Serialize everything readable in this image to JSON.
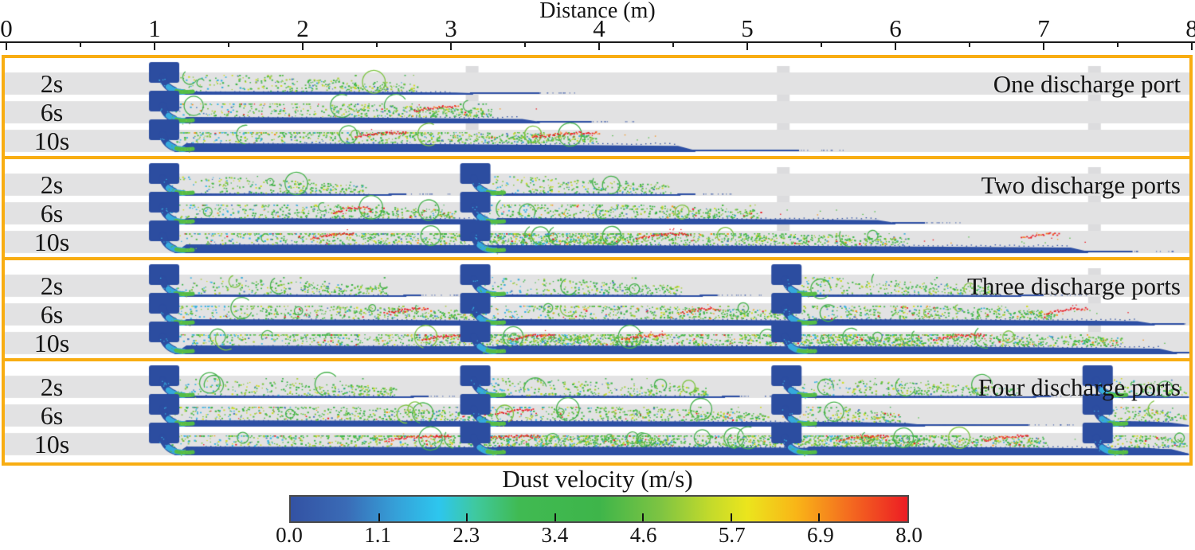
{
  "chart_data": {
    "type": "scatter",
    "figure": "Dust dispersion simulation snapshots for different numbers of discharge ports",
    "xlabel": "Distance (m)",
    "x_range": [
      0,
      8
    ],
    "x_ticks": [
      "0",
      "1",
      "2",
      "3",
      "4",
      "5",
      "6",
      "7",
      "8"
    ],
    "x_minor_tick_step": 0.5,
    "colorbar": {
      "title": "Dust velocity (m/s)",
      "range": [
        0,
        8
      ],
      "tick_labels": [
        "0.0",
        "1.1",
        "2.3",
        "3.4",
        "4.6",
        "5.7",
        "6.9",
        "8.0"
      ],
      "stops": [
        {
          "p": 0.0,
          "c": "#3352A3"
        },
        {
          "p": 0.09,
          "c": "#3A6BB6"
        },
        {
          "p": 0.17,
          "c": "#35A0D8"
        },
        {
          "p": 0.24,
          "c": "#2DC6EE"
        },
        {
          "p": 0.3,
          "c": "#3FC99E"
        },
        {
          "p": 0.37,
          "c": "#40BA52"
        },
        {
          "p": 0.5,
          "c": "#3EB54A"
        },
        {
          "p": 0.6,
          "c": "#7EC442"
        },
        {
          "p": 0.68,
          "c": "#C3DA2B"
        },
        {
          "p": 0.74,
          "c": "#EBE51D"
        },
        {
          "p": 0.82,
          "c": "#F9B517"
        },
        {
          "p": 0.9,
          "c": "#F4701F"
        },
        {
          "p": 1.0,
          "c": "#EC1C24"
        }
      ]
    },
    "all_ports_m": [
      1.0,
      3.1,
      5.2,
      7.3
    ],
    "times": [
      "2s",
      "6s",
      "10s"
    ],
    "panels": [
      {
        "label": "One discharge port",
        "ports_m": [
          1.0
        ],
        "rows": [
          {
            "time": "2s",
            "plumes": [
              {
                "start_m": 1.0,
                "cloud_m": 2.8,
                "sed_m": 3.15,
                "tail_m": 3.6,
                "th": 4
              }
            ],
            "streaks_m": []
          },
          {
            "time": "6s",
            "plumes": [
              {
                "start_m": 1.0,
                "cloud_m": 3.3,
                "sed_m": 3.6,
                "tail_m": 3.95,
                "th": 8
              }
            ],
            "streaks_m": [
              [
                2.75,
                3.05
              ]
            ]
          },
          {
            "time": "10s",
            "plumes": [
              {
                "start_m": 1.0,
                "cloud_m": 4.0,
                "sed_m": 4.65,
                "tail_m": 5.35,
                "th": 11
              }
            ],
            "streaks_m": [
              [
                2.35,
                2.7
              ],
              [
                3.55,
                4.0
              ]
            ]
          }
        ]
      },
      {
        "label": "Two discharge ports",
        "ports_m": [
          1.0,
          3.1
        ],
        "rows": [
          {
            "time": "2s",
            "plumes": [
              {
                "start_m": 1.0,
                "cloud_m": 2.45,
                "sed_m": 2.6,
                "tail_m": 2.7,
                "th": 3
              },
              {
                "start_m": 3.1,
                "cloud_m": 4.5,
                "sed_m": 4.55,
                "tail_m": 4.65,
                "th": 3
              }
            ],
            "streaks_m": []
          },
          {
            "time": "6s",
            "plumes": [
              {
                "start_m": 1.0,
                "cloud_m": 3.05,
                "sed_m": 4.1,
                "tail_m": 4.35,
                "th": 8
              },
              {
                "start_m": 3.1,
                "cloud_m": 5.1,
                "sed_m": 6.0,
                "tail_m": 6.2,
                "th": 8
              }
            ],
            "streaks_m": [
              [
                2.2,
                2.45
              ]
            ]
          },
          {
            "time": "10s",
            "plumes": [
              {
                "start_m": 1.0,
                "cloud_m": 4.3,
                "sed_m": 5.3,
                "tail_m": 5.45,
                "th": 11
              },
              {
                "start_m": 3.1,
                "cloud_m": 6.1,
                "sed_m": 7.3,
                "tail_m": 7.6,
                "th": 10
              }
            ],
            "streaks_m": [
              [
                2.05,
                2.35
              ],
              [
                4.25,
                4.6
              ],
              [
                6.85,
                7.1
              ]
            ]
          }
        ]
      },
      {
        "label": "Three discharge ports",
        "ports_m": [
          1.0,
          3.1,
          5.2
        ],
        "rows": [
          {
            "time": "2s",
            "plumes": [
              {
                "start_m": 1.0,
                "cloud_m": 2.6,
                "sed_m": 2.7,
                "tail_m": 2.8,
                "th": 3
              },
              {
                "start_m": 3.1,
                "cloud_m": 4.6,
                "sed_m": 4.7,
                "tail_m": 4.8,
                "th": 3
              },
              {
                "start_m": 5.2,
                "cloud_m": 6.7,
                "sed_m": 6.85,
                "tail_m": 7.0,
                "th": 3
              }
            ],
            "streaks_m": []
          },
          {
            "time": "6s",
            "plumes": [
              {
                "start_m": 1.0,
                "cloud_m": 3.25,
                "sed_m": 3.85,
                "tail_m": 4.05,
                "th": 8
              },
              {
                "start_m": 3.1,
                "cloud_m": 5.3,
                "sed_m": 6.15,
                "tail_m": 6.35,
                "th": 8
              },
              {
                "start_m": 5.2,
                "cloud_m": 7.1,
                "sed_m": 7.75,
                "tail_m": 7.95,
                "th": 8
              }
            ],
            "streaks_m": [
              [
                2.55,
                2.85
              ],
              [
                4.55,
                4.8
              ],
              [
                7.0,
                7.3
              ]
            ]
          },
          {
            "time": "10s",
            "plumes": [
              {
                "start_m": 1.0,
                "cloud_m": 4.35,
                "sed_m": 5.15,
                "tail_m": 5.3,
                "th": 11
              },
              {
                "start_m": 3.1,
                "cloud_m": 6.2,
                "sed_m": 7.1,
                "tail_m": 7.2,
                "th": 11
              },
              {
                "start_m": 5.2,
                "cloud_m": 7.55,
                "sed_m": 7.9,
                "tail_m": 8.0,
                "th": 10
              }
            ],
            "streaks_m": [
              [
                2.8,
                3.15
              ],
              [
                3.4,
                3.7
              ],
              [
                4.15,
                4.45
              ],
              [
                6.25,
                6.6
              ]
            ]
          }
        ]
      },
      {
        "label": "Four discharge ports",
        "ports_m": [
          1.0,
          3.1,
          5.2,
          7.3
        ],
        "rows": [
          {
            "time": "2s",
            "plumes": [
              {
                "start_m": 1.0,
                "cloud_m": 2.65,
                "sed_m": 2.75,
                "tail_m": 2.85,
                "th": 3
              },
              {
                "start_m": 3.1,
                "cloud_m": 4.75,
                "sed_m": 4.85,
                "tail_m": 4.95,
                "th": 3
              },
              {
                "start_m": 5.2,
                "cloud_m": 6.85,
                "sed_m": 6.95,
                "tail_m": 7.05,
                "th": 3
              },
              {
                "start_m": 7.3,
                "cloud_m": 7.98,
                "sed_m": 7.98,
                "tail_m": 7.98,
                "th": 3
              }
            ],
            "streaks_m": []
          },
          {
            "time": "6s",
            "plumes": [
              {
                "start_m": 1.0,
                "cloud_m": 3.3,
                "sed_m": 4.35,
                "tail_m": 4.6,
                "th": 8
              },
              {
                "start_m": 3.1,
                "cloud_m": 5.15,
                "sed_m": 5.85,
                "tail_m": 6.9,
                "th": 7
              },
              {
                "start_m": 5.2,
                "cloud_m": 6.05,
                "sed_m": 6.2,
                "tail_m": 6.3,
                "th": 6
              },
              {
                "start_m": 7.3,
                "cloud_m": 7.98,
                "sed_m": 7.98,
                "tail_m": 7.98,
                "th": 7
              }
            ],
            "streaks_m": [
              [
                3.3,
                3.55
              ]
            ]
          },
          {
            "time": "10s",
            "plumes": [
              {
                "start_m": 1.0,
                "cloud_m": 4.55,
                "sed_m": 5.5,
                "tail_m": 5.65,
                "th": 11
              },
              {
                "start_m": 3.1,
                "cloud_m": 6.25,
                "sed_m": 6.65,
                "tail_m": 6.75,
                "th": 11
              },
              {
                "start_m": 5.2,
                "cloud_m": 7.05,
                "sed_m": 7.98,
                "tail_m": 7.98,
                "th": 11
              },
              {
                "start_m": 7.3,
                "cloud_m": 7.98,
                "sed_m": 7.98,
                "tail_m": 7.98,
                "th": 10
              }
            ],
            "streaks_m": [
              [
                2.55,
                3.0
              ],
              [
                3.1,
                3.6
              ],
              [
                5.6,
                5.95
              ],
              [
                6.6,
                6.9
              ]
            ]
          }
        ]
      }
    ],
    "legend_position": "bottom-colorbar"
  },
  "colors": {
    "panel_border": "#F8AD12",
    "band": "#E2E2E3",
    "notch": "#DCDCDE",
    "sediment": "#2D4FA4",
    "chute_navy": "#2C4DA0",
    "cyan": "#36A9DC",
    "green": "#3EB54A",
    "red": "#EC1C24",
    "orange_dot": "#F4711F",
    "axis": "#1A1A1A",
    "text": "#151515"
  }
}
